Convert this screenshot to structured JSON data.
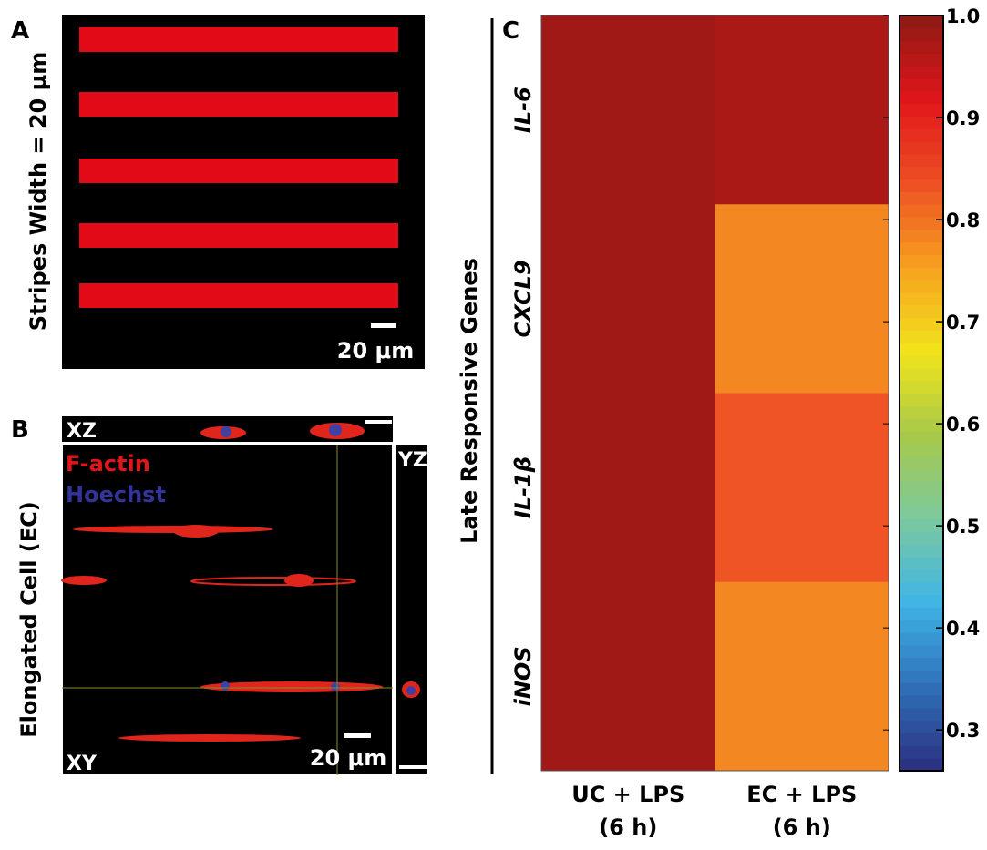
{
  "panel_a": {
    "label": "A",
    "side_label": "Stripes Width = 20 μm",
    "scale_label": "20 μm"
  },
  "panel_b": {
    "label": "B",
    "side_label": "Elongated Cell (EC)",
    "xz": "XZ",
    "yz": "YZ",
    "xy": "XY",
    "legend": [
      "F-actin",
      "Hoechst"
    ],
    "scale_label": "20 μm"
  },
  "panel_c": {
    "label": "C"
  },
  "chart_data": {
    "type": "heatmap",
    "y_label": "Late Responsive Genes",
    "rows": [
      "IL-6",
      "CXCL9",
      "IL-1β",
      "iNOS"
    ],
    "columns": [
      [
        "UC + LPS",
        "(6 h)"
      ],
      [
        "EC + LPS",
        "(6 h)"
      ]
    ],
    "values": [
      [
        0.98,
        0.97
      ],
      [
        0.98,
        0.78
      ],
      [
        0.98,
        0.83
      ],
      [
        0.98,
        0.78
      ]
    ],
    "colormap": [
      "#2b2f7f",
      "#2f6fb8",
      "#3fb4e6",
      "#7cc9a0",
      "#a7c94a",
      "#f1e41b",
      "#f6a11f",
      "#ee5024",
      "#e0161b",
      "#8c1a15"
    ],
    "ylim": [
      0.26,
      1
    ],
    "yticks": [
      0.3,
      0.4,
      0.5,
      0.6,
      0.7,
      0.8,
      0.9,
      {
        "value": 1,
        "label": "1.0"
      }
    ]
  }
}
